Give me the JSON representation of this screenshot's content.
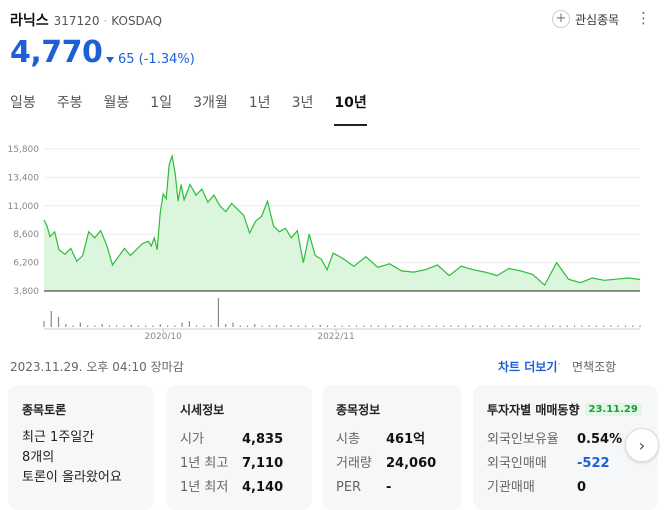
{
  "header": {
    "stock_name": "라닉스",
    "stock_code": "317120",
    "separator": "·",
    "market": "KOSDAQ",
    "fav_icon": "+",
    "fav_label": "관심종목",
    "more_icon": "⋮"
  },
  "quote": {
    "price": "4,770",
    "change": "65 (-1.34%)",
    "direction": "down",
    "color": "#1e5fd6"
  },
  "tabs": [
    {
      "label": "일봉",
      "active": false
    },
    {
      "label": "주봉",
      "active": false
    },
    {
      "label": "월봉",
      "active": false
    },
    {
      "label": "1일",
      "active": false
    },
    {
      "label": "3개월",
      "active": false
    },
    {
      "label": "1년",
      "active": false
    },
    {
      "label": "3년",
      "active": false
    },
    {
      "label": "10년",
      "active": true
    }
  ],
  "chart_data": {
    "type": "area",
    "line_color": "#2dbd3a",
    "fill_color": "#dcf5dd",
    "ylim": [
      3800,
      15800
    ],
    "y_ticks": [
      "15,800",
      "13,400",
      "11,000",
      "8,600",
      "6,200",
      "3,800"
    ],
    "y_tick_values": [
      15800,
      13400,
      11000,
      8600,
      6200,
      3800
    ],
    "x_ticks": [
      "2020/10",
      "2022/11"
    ],
    "x_tick_positions": [
      0.2,
      0.49
    ],
    "series": [
      {
        "x": [
          0,
          0.005,
          0.01,
          0.018,
          0.025,
          0.035,
          0.045,
          0.055,
          0.065,
          0.075,
          0.085,
          0.095,
          0.105,
          0.115,
          0.125,
          0.135,
          0.145,
          0.155,
          0.165,
          0.175,
          0.18,
          0.185,
          0.19,
          0.195,
          0.2,
          0.205,
          0.21,
          0.215,
          0.22,
          0.225,
          0.23,
          0.235,
          0.245,
          0.255,
          0.265,
          0.275,
          0.285,
          0.295,
          0.305,
          0.315,
          0.325,
          0.335,
          0.345,
          0.355,
          0.365,
          0.375,
          0.385,
          0.395,
          0.405,
          0.415,
          0.425,
          0.435,
          0.445,
          0.455,
          0.465,
          0.475,
          0.485,
          0.5,
          0.52,
          0.54,
          0.56,
          0.58,
          0.6,
          0.62,
          0.64,
          0.66,
          0.68,
          0.7,
          0.72,
          0.74,
          0.76,
          0.78,
          0.8,
          0.82,
          0.84,
          0.86,
          0.88,
          0.9,
          0.92,
          0.94,
          0.96,
          0.98,
          1.0
        ],
        "y": [
          9800,
          9300,
          8400,
          8800,
          7300,
          6900,
          7400,
          6300,
          6800,
          8800,
          8300,
          8900,
          7700,
          6000,
          6700,
          7400,
          6800,
          7300,
          7800,
          8000,
          7600,
          8300,
          7300,
          10400,
          12000,
          11600,
          14500,
          15200,
          13800,
          11400,
          12800,
          11500,
          12800,
          11900,
          12400,
          11300,
          11900,
          11000,
          10500,
          11200,
          10700,
          10200,
          8700,
          9700,
          10100,
          11400,
          9300,
          8800,
          9100,
          8300,
          8900,
          6200,
          8600,
          6800,
          6500,
          5600,
          7000,
          6600,
          5900,
          6700,
          5800,
          6100,
          5500,
          5400,
          5600,
          6000,
          5100,
          5900,
          5600,
          5400,
          5100,
          5700,
          5500,
          5200,
          4300,
          6200,
          4800,
          4500,
          4900,
          4700,
          4800,
          4900,
          4770
        ]
      }
    ],
    "volume": [
      0.2,
      0.55,
      0.35,
      0.1,
      0.05,
      0.15,
      0.05,
      0.05,
      0.1,
      0.05,
      0.05,
      0.05,
      0.08,
      0.05,
      0.05,
      0.05,
      0.1,
      0.05,
      0.05,
      0.15,
      0.2,
      0.05,
      0.05,
      0.05,
      1.0,
      0.1,
      0.15,
      0.05,
      0.05,
      0.1,
      0.05,
      0.05,
      0.06,
      0.05,
      0.06,
      0.05,
      0.05,
      0.05,
      0.08,
      0.05,
      0.05,
      0.05,
      0.05,
      0.05,
      0.05,
      0.05,
      0.05,
      0.05,
      0.05,
      0.05,
      0.05,
      0.05,
      0.05,
      0.05,
      0.05,
      0.05,
      0.05,
      0.05,
      0.05,
      0.05,
      0.05,
      0.05,
      0.05,
      0.05,
      0.05,
      0.05,
      0.05,
      0.05,
      0.05,
      0.05,
      0.05,
      0.05,
      0.05,
      0.05,
      0.05,
      0.05,
      0.05,
      0.05,
      0.05,
      0.05,
      0.05,
      0.05,
      0.05
    ]
  },
  "footer": {
    "timestamp": "2023.11.29. 오후 04:10 장마감",
    "chart_more": "차트 더보기",
    "dot": "·",
    "disclaimer": "면책조항"
  },
  "cards": {
    "forum": {
      "title": "종목토론",
      "line1": "최근 1주일간",
      "line2": "8개의",
      "line3": "토론이 올라왔어요"
    },
    "market_info": {
      "title": "시세정보",
      "rows": [
        {
          "label": "시가",
          "value": "4,835"
        },
        {
          "label": "1년 최고",
          "value": "7,110"
        },
        {
          "label": "1년 최저",
          "value": "4,140"
        }
      ]
    },
    "stock_info": {
      "title": "종목정보",
      "rows": [
        {
          "label": "시총",
          "value": "461억"
        },
        {
          "label": "거래량",
          "value": "24,060"
        },
        {
          "label": "PER",
          "value": "-"
        }
      ]
    },
    "investor": {
      "title": "투자자별 매매동향",
      "date": "23.11.29",
      "rows": [
        {
          "label": "외국인보유율",
          "value": "0.54%"
        },
        {
          "label": "외국인매매",
          "value": "-522"
        },
        {
          "label": "기관매매",
          "value": "0"
        }
      ]
    },
    "next_icon": "›"
  }
}
